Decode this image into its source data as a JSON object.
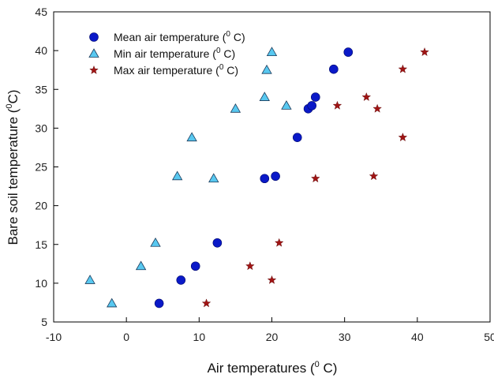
{
  "chart_data": {
    "type": "scatter",
    "xlabel": "Air temperatures (",
    "xlabel_sup": "0",
    "xlabel_tail": " C)",
    "ylabel": "Bare soil temperature (",
    "ylabel_sup": "0",
    "ylabel_tail": "C)",
    "xlim": [
      -10,
      50
    ],
    "ylim": [
      5,
      45
    ],
    "xticks": [
      "-10",
      "0",
      "10",
      "20",
      "30",
      "40",
      "50"
    ],
    "yticks": [
      "5",
      "10",
      "15",
      "20",
      "25",
      "30",
      "35",
      "40",
      "45"
    ],
    "legend_position": "top-left",
    "series": [
      {
        "name": "Mean air temperature (",
        "name_sup": "0",
        "name_tail": " C)",
        "marker": "circle",
        "color": "#0a19c8",
        "points": [
          [
            4.5,
            7.4
          ],
          [
            7.5,
            10.4
          ],
          [
            9.5,
            12.2
          ],
          [
            12.5,
            15.2
          ],
          [
            19,
            23.5
          ],
          [
            20.5,
            23.8
          ],
          [
            23.5,
            28.8
          ],
          [
            25,
            32.5
          ],
          [
            25.5,
            32.9
          ],
          [
            26,
            34
          ],
          [
            28.5,
            37.6
          ],
          [
            30.5,
            39.8
          ]
        ]
      },
      {
        "name": "Min air temperature (",
        "name_sup": "0",
        "name_tail": " C)",
        "marker": "triangle",
        "color": "#58c8f0",
        "points": [
          [
            -5,
            10.4
          ],
          [
            -2,
            7.4
          ],
          [
            2,
            12.2
          ],
          [
            4,
            15.2
          ],
          [
            7,
            23.8
          ],
          [
            9,
            28.8
          ],
          [
            12,
            23.5
          ],
          [
            15,
            32.5
          ],
          [
            19,
            34
          ],
          [
            19.3,
            37.5
          ],
          [
            20,
            39.8
          ],
          [
            22,
            32.9
          ]
        ]
      },
      {
        "name": "Max air temperature (",
        "name_sup": "0",
        "name_tail": " C)",
        "marker": "star",
        "color": "#a01414",
        "points": [
          [
            11,
            7.4
          ],
          [
            17,
            12.2
          ],
          [
            20,
            10.4
          ],
          [
            21,
            15.2
          ],
          [
            26,
            23.5
          ],
          [
            29,
            32.9
          ],
          [
            33,
            34
          ],
          [
            34,
            23.8
          ],
          [
            34.5,
            32.5
          ],
          [
            38,
            28.8
          ],
          [
            38,
            37.6
          ],
          [
            41,
            39.8
          ]
        ]
      }
    ]
  }
}
